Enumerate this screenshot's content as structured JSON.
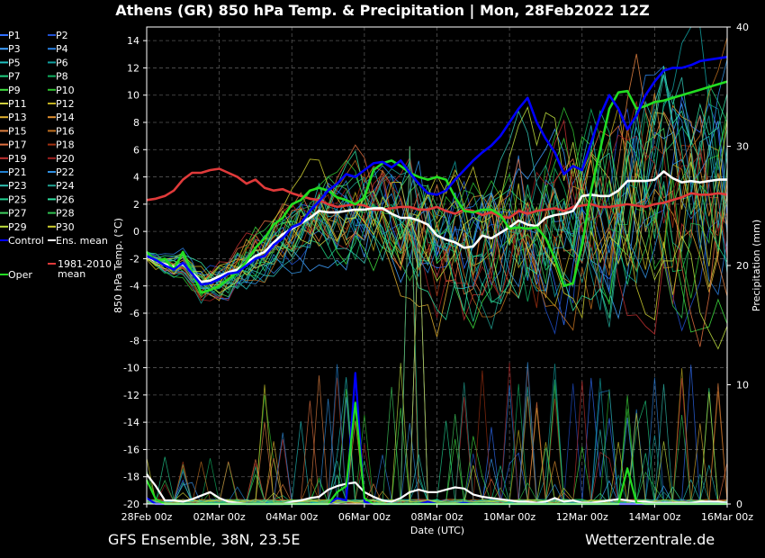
{
  "header": {
    "title": "Athens  (GR)  850 hPa Temp. & Precipitation | Mon, 28Feb2022 12Z"
  },
  "footer": {
    "left": "GFS Ensemble, 38N, 23.5E",
    "right": "Wetterzentrale.de"
  },
  "chart_data": {
    "type": "line",
    "title": "Athens  (GR)  850 hPa Temp. & Precipitation | Mon, 28Feb2022 12Z",
    "xlabel": "Date (UTC)",
    "ylabel": "850 hPa Temp. (°C)",
    "y2label": "Precipitation (mm)",
    "ylim": [
      -20,
      15
    ],
    "y2lim": [
      0,
      40
    ],
    "yticks": [
      -20,
      -18,
      -16,
      -14,
      -12,
      -10,
      -8,
      -6,
      -4,
      -2,
      0,
      2,
      4,
      6,
      8,
      10,
      12,
      14
    ],
    "y2ticks": [
      0,
      10,
      20,
      30,
      40
    ],
    "xticks": [
      "28Feb 00z",
      "02Mar 00z",
      "04Mar 00z",
      "06Mar 00z",
      "08Mar 00z",
      "10Mar 00z",
      "12Mar 00z",
      "14Mar 00z",
      "16Mar 00z"
    ],
    "grid": true,
    "legend_placement": "left",
    "legend": [
      "P1",
      "P2",
      "P3",
      "P4",
      "P5",
      "P6",
      "P7",
      "P8",
      "P9",
      "P10",
      "P11",
      "P12",
      "P13",
      "P14",
      "P15",
      "P16",
      "P17",
      "P18",
      "P19",
      "P20",
      "P21",
      "P22",
      "P23",
      "P24",
      "P25",
      "P26",
      "P27",
      "P28",
      "P29",
      "P30",
      "Control",
      "Ens. mean",
      "1981-2010 mean",
      "Oper"
    ],
    "colors": {
      "control": "#0000ff",
      "ens_mean": "#ffffff",
      "climate_mean": "#e03a3a",
      "oper": "#22dd22",
      "members": [
        "#3070ff",
        "#2050d0",
        "#40a0ff",
        "#2a80e0",
        "#20c0c0",
        "#10a0a0",
        "#20d080",
        "#10b060",
        "#40e040",
        "#30c030",
        "#d0d040",
        "#c0b020",
        "#e0b030",
        "#e09030",
        "#e08040",
        "#c07020",
        "#e07040",
        "#a03010",
        "#c03030",
        "#a02020",
        "#2080d0",
        "#3090e0",
        "#30c0b0",
        "#20a090",
        "#20d090",
        "#30e0a0",
        "#40d060",
        "#30c050",
        "#c0e040",
        "#d0d030"
      ]
    },
    "x_days": [
      0,
      0.25,
      0.5,
      0.75,
      1,
      1.25,
      1.5,
      1.75,
      2,
      2.25,
      2.5,
      2.75,
      3,
      3.25,
      3.5,
      3.75,
      4,
      4.25,
      4.5,
      4.75,
      5,
      5.25,
      5.5,
      5.75,
      6,
      6.25,
      6.5,
      6.75,
      7,
      7.25,
      7.5,
      7.75,
      8,
      8.25,
      8.5,
      8.75,
      9,
      9.25,
      9.5,
      9.75,
      10,
      10.25,
      10.5,
      10.75,
      11,
      11.25,
      11.5,
      11.75,
      12,
      12.25,
      12.5,
      12.75,
      13,
      13.25,
      13.5,
      13.75,
      14,
      14.25,
      14.5,
      14.75,
      15,
      15.25,
      15.5,
      15.75,
      16
    ],
    "series": [
      {
        "name": "Control",
        "type": "temp",
        "values": [
          -1.8,
          -2.1,
          -2.5,
          -2.8,
          -2.3,
          -3.1,
          -3.9,
          -3.8,
          -3.5,
          -3.1,
          -3.0,
          -2.5,
          -2.0,
          -1.8,
          -1.0,
          -0.5,
          0.3,
          0.6,
          1.5,
          2.2,
          3.0,
          3.5,
          4.2,
          4.0,
          4.5,
          5.0,
          5.1,
          4.7,
          5.2,
          4.3,
          3.5,
          2.8,
          2.7,
          3.0,
          3.8,
          4.5,
          5.2,
          5.8,
          6.3,
          7.0,
          8.0,
          9.0,
          9.8,
          8.0,
          6.8,
          5.8,
          4.2,
          4.8,
          4.5,
          6.5,
          8.5,
          10.0,
          9.0,
          7.5,
          8.5,
          10.0,
          11.0,
          11.8,
          12.0,
          12.0,
          12.2,
          12.5,
          12.6,
          12.7,
          12.8
        ]
      },
      {
        "name": "Ens. mean",
        "type": "temp",
        "values": [
          -1.8,
          -2.2,
          -2.4,
          -2.6,
          -2.4,
          -3.0,
          -3.7,
          -3.6,
          -3.3,
          -3.0,
          -2.8,
          -2.3,
          -1.8,
          -1.5,
          -0.8,
          -0.2,
          0.2,
          0.6,
          1.0,
          1.5,
          1.4,
          1.4,
          1.5,
          1.6,
          1.6,
          1.7,
          1.7,
          1.3,
          1.0,
          1.0,
          0.8,
          0.5,
          -0.3,
          -0.6,
          -0.8,
          -1.2,
          -1.1,
          -0.3,
          -0.5,
          -0.1,
          0.3,
          0.8,
          0.5,
          0.4,
          1.0,
          1.2,
          1.3,
          1.5,
          2.6,
          2.7,
          2.6,
          2.6,
          3.0,
          3.7,
          3.7,
          3.7,
          3.8,
          4.4,
          3.9,
          3.6,
          3.7,
          3.6,
          3.7,
          3.8,
          3.8
        ]
      },
      {
        "name": "1981-2010 mean",
        "type": "temp",
        "values": [
          2.3,
          2.4,
          2.6,
          3.0,
          3.8,
          4.3,
          4.3,
          4.5,
          4.6,
          4.3,
          4.0,
          3.5,
          3.8,
          3.2,
          3.0,
          3.1,
          2.8,
          2.6,
          2.4,
          2.3,
          2.0,
          1.8,
          1.9,
          2.0,
          1.9,
          1.6,
          1.6,
          1.7,
          1.8,
          1.8,
          1.6,
          1.6,
          1.8,
          1.5,
          1.3,
          1.6,
          1.5,
          1.2,
          1.4,
          1.1,
          1.0,
          1.5,
          1.3,
          1.5,
          1.6,
          1.7,
          1.5,
          1.8,
          1.9,
          2.0,
          1.8,
          1.8,
          1.9,
          2.0,
          1.9,
          1.8,
          2.0,
          2.1,
          2.3,
          2.5,
          2.8,
          2.7,
          2.7,
          2.8,
          2.7
        ]
      },
      {
        "name": "Oper",
        "type": "temp",
        "values": [
          -1.5,
          -2.2,
          -2.0,
          -2.8,
          -1.5,
          -3.0,
          -4.5,
          -4.3,
          -4.0,
          -3.5,
          -3.0,
          -2.2,
          -1.2,
          -0.5,
          0.5,
          1.0,
          2.0,
          2.3,
          3.0,
          3.2,
          3.0,
          2.5,
          2.3,
          2.0,
          2.5,
          4.5,
          5.0,
          5.2,
          4.8,
          4.3,
          4.0,
          3.8,
          4.0,
          3.8,
          2.5,
          1.5,
          1.4,
          1.6,
          1.6,
          1.2,
          0.2,
          0.3,
          0.2,
          0.3,
          -0.5,
          -2.0,
          -4.0,
          -3.8,
          -1.0,
          3.0,
          6.0,
          9.0,
          10.2,
          10.3,
          9.0,
          9.2,
          9.5,
          9.6,
          9.8,
          10.0,
          10.2,
          10.4,
          10.6,
          10.8,
          11.0
        ]
      },
      {
        "name": "Control precip",
        "type": "precip",
        "values": [
          0.5,
          0,
          0,
          0,
          0,
          0,
          0,
          0,
          0,
          0,
          0,
          0,
          0,
          0,
          0,
          0,
          0,
          0,
          0,
          0,
          0,
          0.5,
          0.3,
          11,
          0.2,
          0,
          0,
          0,
          0,
          0,
          0,
          0.2,
          0,
          0,
          0,
          0.1,
          0,
          0,
          0,
          0,
          0,
          0,
          0,
          0,
          0,
          0,
          0,
          0,
          0,
          0,
          0,
          0,
          0,
          0,
          0,
          0,
          0,
          0,
          0,
          0,
          0,
          0,
          0,
          0,
          0
        ]
      },
      {
        "name": "Ens. mean precip",
        "type": "precip",
        "values": [
          2.5,
          1.5,
          0.3,
          0.3,
          0.2,
          0.4,
          0.7,
          1.0,
          0.5,
          0.2,
          0.1,
          0,
          0,
          0,
          0,
          0,
          0.2,
          0.3,
          0.5,
          0.6,
          1.2,
          1.5,
          1.7,
          1.8,
          1.0,
          0.6,
          0.3,
          0.2,
          0.5,
          1.0,
          1.2,
          1.0,
          1.0,
          1.2,
          1.4,
          1.3,
          0.8,
          0.6,
          0.5,
          0.4,
          0.3,
          0.2,
          0.2,
          0.1,
          0.2,
          0.5,
          0.2,
          0.3,
          0.1,
          0.1,
          0.2,
          0.3,
          0.4,
          0.3,
          0.2,
          0.2,
          0.1,
          0.1,
          0.1,
          0.1,
          0.1,
          0.2,
          0.2,
          0.2,
          0.1
        ]
      },
      {
        "name": "Oper precip",
        "type": "precip",
        "values": [
          2.0,
          0.4,
          0,
          0,
          0,
          0,
          0,
          0,
          0,
          0,
          0,
          0,
          0,
          0,
          0,
          0,
          0,
          0,
          0,
          0,
          0,
          1.0,
          1.5,
          8.5,
          0.5,
          0,
          0,
          0,
          0,
          0,
          0,
          0,
          0,
          0,
          0,
          0,
          0,
          0,
          0,
          0,
          0,
          0,
          0,
          0,
          0,
          0,
          0,
          0,
          0,
          0,
          0,
          0,
          0,
          3.0,
          0.1,
          0,
          0,
          0,
          0,
          0,
          0,
          0,
          0,
          0,
          0
        ]
      }
    ]
  }
}
